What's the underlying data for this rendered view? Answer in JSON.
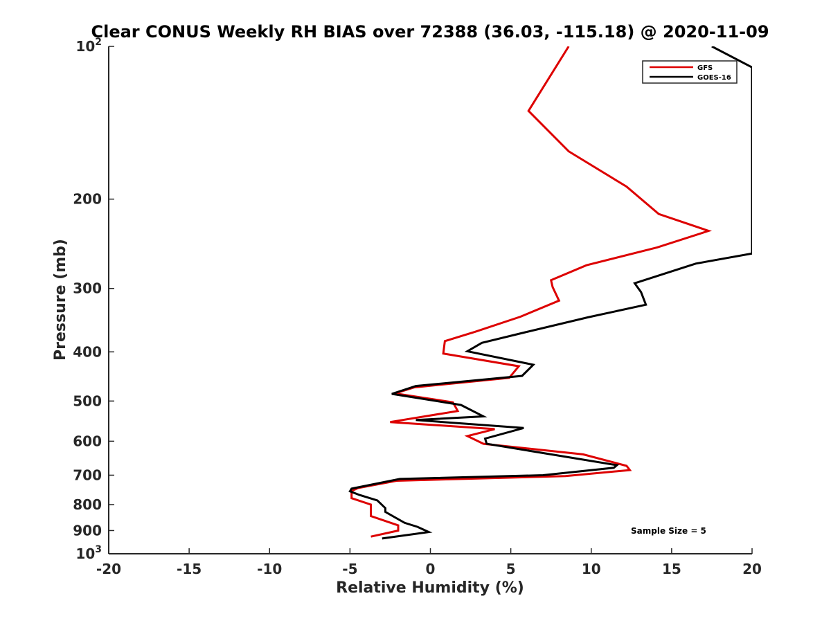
{
  "chart_data": {
    "type": "line",
    "title": "Clear CONUS Weekly RH BIAS over 72388 (36.03, -115.18) @ 2020-11-09",
    "xlabel": "Relative Humidity (%)",
    "ylabel": "Pressure (mb)",
    "xlim": [
      -20,
      20
    ],
    "ylim": [
      100,
      1000
    ],
    "yscale": "log",
    "y_reversed": true,
    "xticks": [
      "-20",
      "-15",
      "-10",
      "-5",
      "0",
      "5",
      "10",
      "15",
      "20"
    ],
    "yticks": [
      {
        "value": 100,
        "label": "10",
        "sup": "2"
      },
      {
        "value": 200,
        "label": "200",
        "sup": ""
      },
      {
        "value": 300,
        "label": "300",
        "sup": ""
      },
      {
        "value": 400,
        "label": "400",
        "sup": ""
      },
      {
        "value": 500,
        "label": "500",
        "sup": ""
      },
      {
        "value": 600,
        "label": "600",
        "sup": ""
      },
      {
        "value": 700,
        "label": "700",
        "sup": ""
      },
      {
        "value": 800,
        "label": "800",
        "sup": ""
      },
      {
        "value": 900,
        "label": "900",
        "sup": ""
      },
      {
        "value": 1000,
        "label": "10",
        "sup": "3"
      }
    ],
    "grid": false,
    "legend_position": "top-right",
    "annotation": "Sample Size = 5",
    "series": [
      {
        "name": "GFS",
        "color": "#dd0000",
        "points": [
          [
            8.6,
            100
          ],
          [
            6.1,
            134
          ],
          [
            8.6,
            161
          ],
          [
            12.2,
            189
          ],
          [
            14.2,
            214
          ],
          [
            17.3,
            231
          ],
          [
            14.1,
            249
          ],
          [
            9.7,
            270
          ],
          [
            7.5,
            289
          ],
          [
            7.6,
            298
          ],
          [
            8.0,
            317
          ],
          [
            5.6,
            341
          ],
          [
            2.8,
            365
          ],
          [
            0.9,
            381
          ],
          [
            0.8,
            403
          ],
          [
            5.5,
            427
          ],
          [
            4.9,
            450
          ],
          [
            -1.0,
            470
          ],
          [
            -2.2,
            483
          ],
          [
            1.4,
            503
          ],
          [
            1.7,
            523
          ],
          [
            -2.5,
            550
          ],
          [
            4.0,
            568
          ],
          [
            2.3,
            586
          ],
          [
            3.3,
            607
          ],
          [
            9.5,
            637
          ],
          [
            12.2,
            671
          ],
          [
            12.4,
            684
          ],
          [
            8.4,
            703
          ],
          [
            -2.1,
            718
          ],
          [
            -4.5,
            742
          ],
          [
            -4.9,
            752
          ],
          [
            -4.9,
            777
          ],
          [
            -3.7,
            800
          ],
          [
            -3.7,
            843
          ],
          [
            -2.0,
            879
          ],
          [
            -2.0,
            900
          ],
          [
            -3.7,
            925
          ]
        ]
      },
      {
        "name": "GOES-16",
        "color": "#000000",
        "points": [
          [
            17.5,
            100
          ],
          [
            20.0,
            110
          ],
          [
            20.0,
            256
          ],
          [
            16.5,
            268
          ],
          [
            12.7,
            293
          ],
          [
            13.1,
            305
          ],
          [
            13.4,
            323
          ],
          [
            9.8,
            342
          ],
          [
            5.9,
            366
          ],
          [
            3.2,
            384
          ],
          [
            2.3,
            399
          ],
          [
            6.4,
            424
          ],
          [
            5.7,
            446
          ],
          [
            -0.9,
            467
          ],
          [
            -2.4,
            484
          ],
          [
            1.9,
            509
          ],
          [
            3.3,
            536
          ],
          [
            -0.9,
            545
          ],
          [
            5.8,
            565
          ],
          [
            3.4,
            593
          ],
          [
            3.5,
            607
          ],
          [
            11.6,
            669
          ],
          [
            11.4,
            677
          ],
          [
            7.0,
            700
          ],
          [
            -1.9,
            712
          ],
          [
            -4.9,
            744
          ],
          [
            -5.0,
            753
          ],
          [
            -4.4,
            766
          ],
          [
            -3.3,
            785
          ],
          [
            -2.8,
            813
          ],
          [
            -2.8,
            827
          ],
          [
            -1.6,
            869
          ],
          [
            -0.8,
            885
          ],
          [
            -0.1,
            906
          ],
          [
            -3.0,
            933
          ]
        ]
      }
    ]
  }
}
